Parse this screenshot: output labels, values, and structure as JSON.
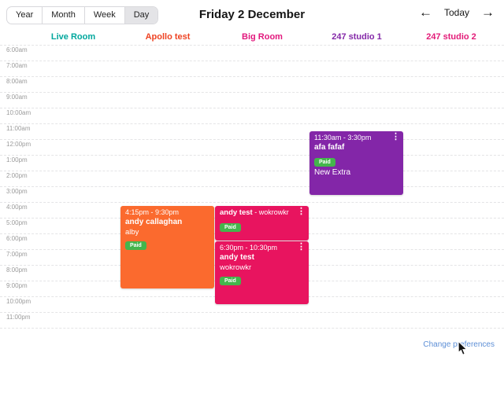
{
  "view_switcher": {
    "year": "Year",
    "month": "Month",
    "week": "Week",
    "day": "Day",
    "active": "Day"
  },
  "header": {
    "title": "Friday 2 December",
    "today_label": "Today",
    "prev_icon": "←",
    "next_icon": "→"
  },
  "rooms": [
    {
      "name": "Live Room",
      "color": "#00a79d"
    },
    {
      "name": "Apollo test",
      "color": "#ee4323"
    },
    {
      "name": "Big Room",
      "color": "#e2187d"
    },
    {
      "name": "247 studio 1",
      "color": "#8428a8"
    },
    {
      "name": "247 studio 2",
      "color": "#e31b78"
    }
  ],
  "time_labels": [
    "6:00am",
    "7:00am",
    "8:00am",
    "9:00am",
    "10:00am",
    "11:00am",
    "12:00pm",
    "1:00pm",
    "2:00pm",
    "3:00pm",
    "4:00pm",
    "5:00pm",
    "6:00pm",
    "7:00pm",
    "8:00pm",
    "9:00pm",
    "10:00pm",
    "11:00pm"
  ],
  "events": [
    {
      "room": "Apollo test",
      "time": "4:15pm - 9:30pm",
      "title": "andy callaghan",
      "subtitle": "alby",
      "color": "#fb6a2e",
      "paid": true,
      "has_menu": false
    },
    {
      "room": "Big Room",
      "time": "",
      "title": "andy test",
      "subtitle_inline": "- wokrowkr",
      "color": "#e8145f",
      "paid": true,
      "has_menu": true
    },
    {
      "room": "Big Room",
      "time": "6:30pm - 10:30pm",
      "title": "andy test",
      "subtitle": "wokrowkr",
      "color": "#e8145f",
      "paid": true,
      "has_menu": true
    },
    {
      "room": "247 studio 1",
      "time": "11:30am - 3:30pm",
      "title": "afa fafaf",
      "subtitle": "New Extra",
      "color": "#8326a8",
      "paid": true,
      "has_menu": true
    }
  ],
  "badge": {
    "paid_label": "Paid",
    "color": "#44b54c"
  },
  "footer": {
    "change_preferences_label": "Change preferences"
  }
}
